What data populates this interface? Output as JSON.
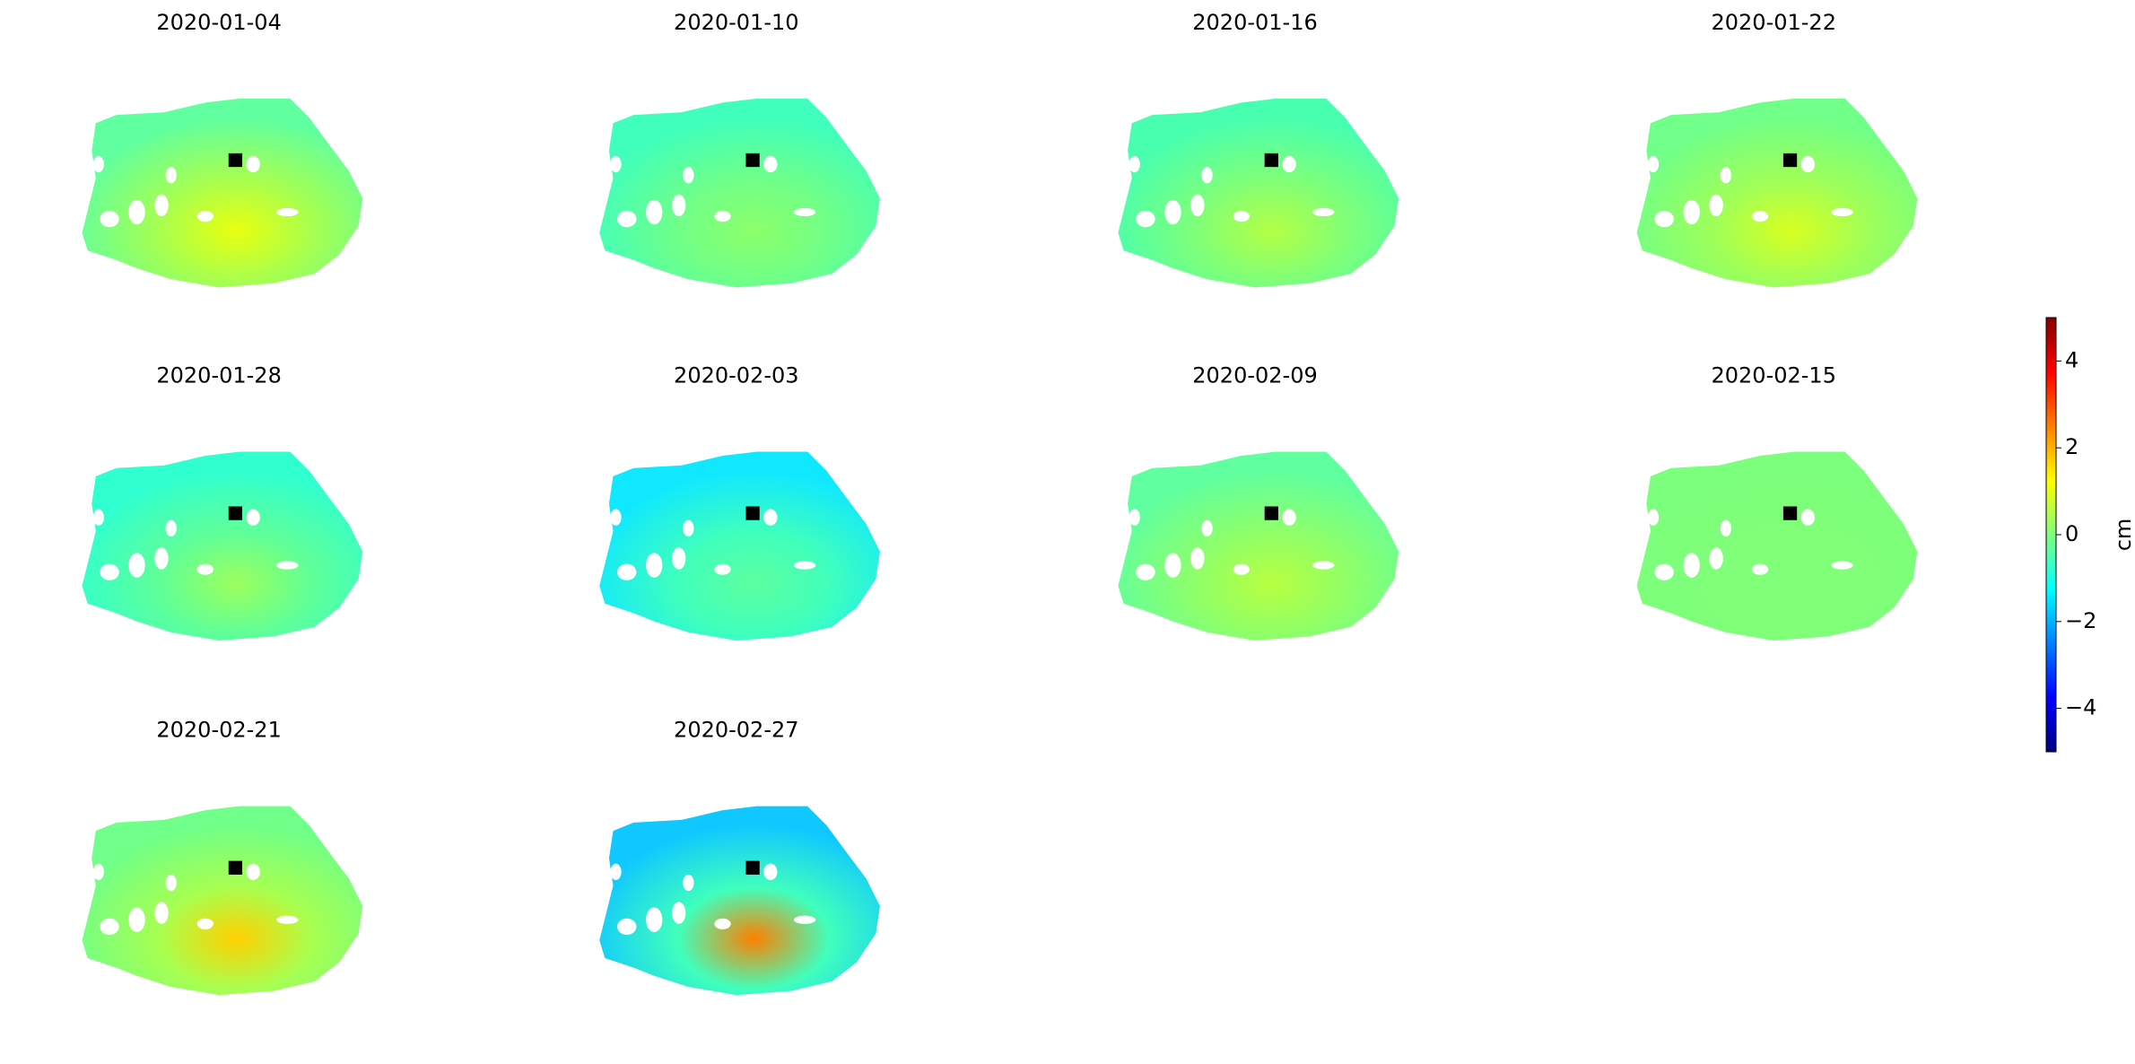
{
  "chart_data": {
    "type": "image-grid",
    "panels": [
      {
        "title": "2020-01-04",
        "colors": [
          "#a8ff4e",
          "#e8ff10",
          "#60ffa0"
        ]
      },
      {
        "title": "2020-01-10",
        "colors": [
          "#70ff88",
          "#8cff6a",
          "#40ffbc"
        ]
      },
      {
        "title": "2020-01-16",
        "colors": [
          "#80ff78",
          "#b4ff44",
          "#48ffb0"
        ]
      },
      {
        "title": "2020-01-22",
        "colors": [
          "#a0ff58",
          "#d8ff20",
          "#70ff88"
        ]
      },
      {
        "title": "2020-01-28",
        "colors": [
          "#60ff98",
          "#9cff5c",
          "#30ffd0"
        ]
      },
      {
        "title": "2020-02-03",
        "colors": [
          "#40ffbc",
          "#5cffa0",
          "#10e8ff"
        ]
      },
      {
        "title": "2020-02-09",
        "colors": [
          "#90ff68",
          "#b8ff40",
          "#60ffa0"
        ]
      },
      {
        "title": "2020-02-15",
        "colors": [
          "#80ff78",
          "#80ff78",
          "#7cff7c"
        ]
      },
      {
        "title": "2020-02-21",
        "colors": [
          "#a8ff50",
          "#ffd000",
          "#70ff88"
        ]
      },
      {
        "title": "2020-02-27",
        "colors": [
          "#40ffbc",
          "#ff8000",
          "#10c8ff"
        ]
      }
    ],
    "colorbar": {
      "label": "cm",
      "lim": [
        -5,
        5
      ],
      "ticks": [
        {
          "value": -4,
          "label": "−4"
        },
        {
          "value": -2,
          "label": "−2"
        },
        0,
        2,
        4
      ],
      "colormap": "jet"
    }
  }
}
